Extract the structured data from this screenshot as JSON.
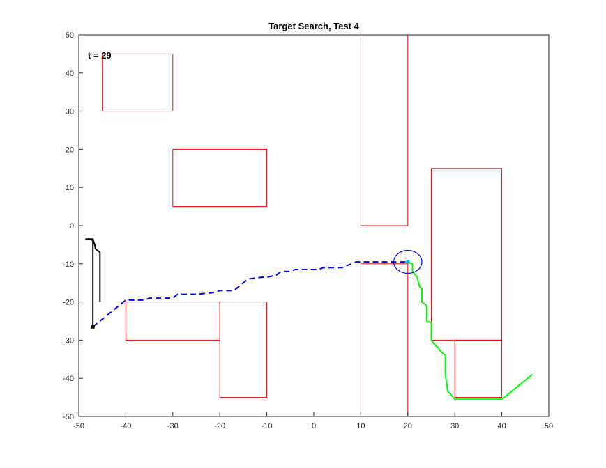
{
  "chart_data": {
    "type": "line",
    "title": "Target Search, Test 4",
    "xlabel": "",
    "ylabel": "",
    "xlim": [
      -50,
      50
    ],
    "ylim": [
      -50,
      50
    ],
    "x_ticks": [
      -50,
      -40,
      -30,
      -20,
      -10,
      0,
      10,
      20,
      30,
      40,
      50
    ],
    "y_ticks": [
      -50,
      -40,
      -30,
      -20,
      -10,
      0,
      10,
      20,
      30,
      40,
      50
    ],
    "grid": false,
    "annotation": "t = 29",
    "obstacles": [
      {
        "x0": -45,
        "x1": -30,
        "y0": 30,
        "y1": 45
      },
      {
        "x0": -30,
        "x1": -10,
        "y0": 5,
        "y1": 20
      },
      {
        "x0": 10,
        "x1": 20,
        "y0": 0,
        "y1": 50
      },
      {
        "x0": 25,
        "x1": 40,
        "y0": -30,
        "y1": 15
      },
      {
        "x0": 30,
        "x1": 40,
        "y0": -45,
        "y1": -30
      },
      {
        "x0": -40,
        "x1": -20,
        "y0": -30,
        "y1": -20
      },
      {
        "x0": -20,
        "x1": -10,
        "y0": -45,
        "y1": -20
      },
      {
        "x0": 10,
        "x1": 20,
        "y0": -50,
        "y1": -10
      }
    ],
    "obstacle_color": "#ff0000",
    "series": [
      {
        "color": "#000000",
        "style": "solid",
        "x": [
          -47,
          -47,
          -47.5,
          -48.5,
          -47,
          -46.5,
          -46.5,
          -45.5,
          -45.5
        ],
        "y": [
          -26.5,
          -4,
          -3.5,
          -3.5,
          -3.5,
          -5.5,
          -6,
          -7,
          -20
        ]
      },
      {
        "color": "#0000ff",
        "style": "dashed",
        "x": [
          -47,
          -40,
          -36,
          -35,
          -30,
          -29,
          -25,
          -21,
          -20,
          -17,
          -16,
          -15,
          -14,
          -11,
          -10,
          -8,
          -7,
          -5,
          -4,
          1,
          2,
          6,
          7,
          8,
          9,
          10,
          20
        ],
        "y": [
          -26.5,
          -19.5,
          -19.5,
          -19,
          -19,
          -18,
          -18,
          -17.5,
          -17,
          -17,
          -16,
          -15,
          -14,
          -13.5,
          -13.5,
          -13,
          -12,
          -12,
          -11.5,
          -11.5,
          -11,
          -11,
          -10.5,
          -10,
          -9.5,
          -9.5,
          -9.5
        ]
      },
      {
        "color": "#00ff00",
        "style": "solid",
        "x": [
          20,
          21,
          21,
          22,
          22.5,
          23,
          23,
          24,
          24,
          25,
          25,
          26,
          26.5,
          27,
          28,
          28,
          28.5,
          29,
          30,
          40,
          46.5
        ],
        "y": [
          -9.5,
          -10,
          -12,
          -13.5,
          -16,
          -16.5,
          -20,
          -21,
          -25,
          -25.5,
          -30,
          -31.5,
          -32,
          -33,
          -34,
          -39,
          -43.5,
          -44,
          -45.5,
          -45.5,
          -39
        ]
      }
    ],
    "markers": [
      {
        "x": -47,
        "y": -26.5,
        "color": "#000000"
      },
      {
        "x": 20,
        "y": -9.5,
        "color": "#00bfbf"
      }
    ],
    "circle": {
      "cx": 20,
      "cy": -9.5,
      "rx": 3,
      "ry": 3,
      "color": "#0000ff"
    }
  }
}
